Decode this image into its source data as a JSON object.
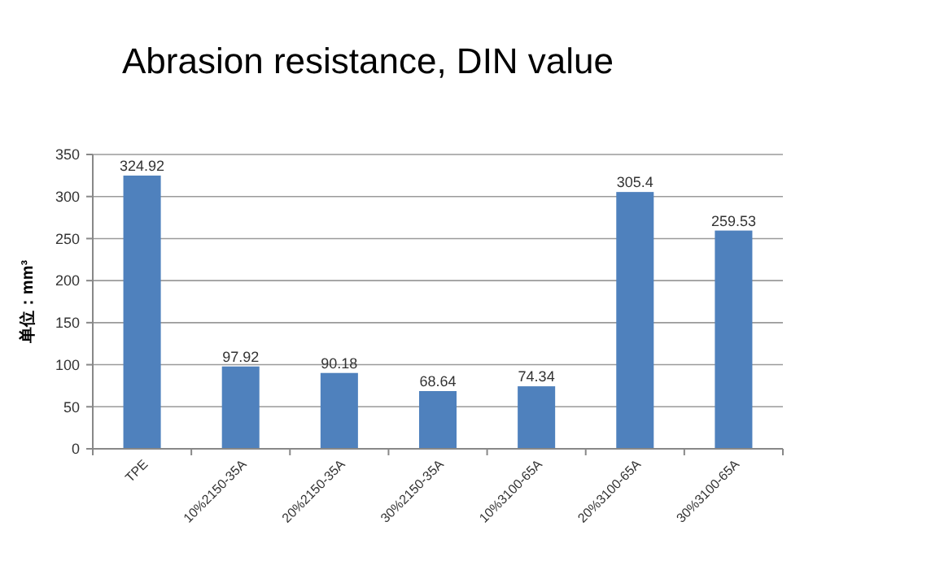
{
  "chart_data": {
    "type": "bar",
    "title": "Abrasion resistance, DIN value",
    "ylabel": "单位：mm³",
    "categories": [
      "TPE",
      "10%2150-35A",
      "20%2150-35A",
      "30%2150-35A",
      "10%3100-65A",
      "20%3100-65A",
      "30%3100-65A"
    ],
    "values": [
      324.92,
      97.92,
      90.18,
      68.64,
      74.34,
      305.4,
      259.53
    ],
    "color": "#4f81bd",
    "ylim": [
      0,
      350
    ],
    "yticks": [
      0,
      50,
      100,
      150,
      200,
      250,
      300,
      350
    ],
    "grid": "y",
    "data_labels": true
  }
}
